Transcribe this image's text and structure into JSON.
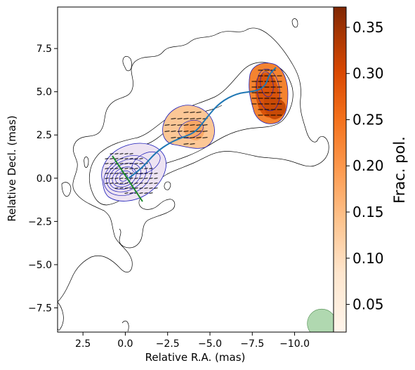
{
  "chart_data": {
    "type": "contour",
    "xlabel": "Relative R.A. (mas)",
    "ylabel": "Relative Decl. (mas)",
    "xlim": [
      4.0,
      -12.3
    ],
    "ylim": [
      -8.9,
      9.9
    ],
    "xticks": [
      2.5,
      0.0,
      -2.5,
      -5.0,
      -7.5,
      -10.0
    ],
    "xtick_labels": [
      "2.5",
      "0.0",
      "−2.5",
      "−5.0",
      "−7.5",
      "−10.0"
    ],
    "yticks": [
      7.5,
      5.0,
      2.5,
      0.0,
      -2.5,
      -5.0,
      -7.5
    ],
    "ytick_labels": [
      "7.5",
      "5.0",
      "2.5",
      "0.0",
      "−2.5",
      "−5.0",
      "−7.5"
    ],
    "colorbar": {
      "label": "Frac. pol.",
      "range": [
        0.02,
        0.372
      ],
      "ticks": [
        0.05,
        0.1,
        0.15,
        0.2,
        0.25,
        0.3,
        0.35
      ],
      "tick_labels": [
        "0.05",
        "0.10",
        "0.15",
        "0.20",
        "0.25",
        "0.30",
        "0.35"
      ],
      "colormap": [
        "#fff5eb",
        "#fdd9b4",
        "#fda762",
        "#f3701b",
        "#d94801",
        "#a63603",
        "#7f2704"
      ]
    },
    "polarized_regions": [
      {
        "center": [
          -3.6,
          2.8
        ],
        "frac_pol": 0.12
      },
      {
        "center": [
          -8.3,
          5.2
        ],
        "frac_pol": 0.24
      },
      {
        "center": [
          -8.4,
          4.2
        ],
        "frac_pol": 0.3
      },
      {
        "center": [
          0.1,
          0.3
        ],
        "frac_pol": 0.05
      }
    ],
    "jet_ridge_line": [
      [
        -0.2,
        0.0
      ],
      [
        -1.0,
        0.6
      ],
      [
        -1.8,
        1.5
      ],
      [
        -2.7,
        2.1
      ],
      [
        -3.5,
        2.4
      ],
      [
        -4.2,
        2.7
      ],
      [
        -4.8,
        3.5
      ],
      [
        -5.6,
        4.4
      ],
      [
        -6.6,
        4.9
      ],
      [
        -7.4,
        5.0
      ],
      [
        -7.9,
        5.1
      ],
      [
        -8.3,
        5.4
      ],
      [
        -8.5,
        6.0
      ],
      [
        -8.9,
        6.4
      ]
    ],
    "core_axis_line": [
      [
        0.7,
        1.3
      ],
      [
        -1.0,
        -1.3
      ]
    ],
    "beam": {
      "center": [
        -11.6,
        -8.4
      ],
      "major": 0.85,
      "minor": 0.85,
      "color": "#8fc88f"
    },
    "contour_colors": {
      "total_intensity": "#000000",
      "polarized_intensity": "#1a1ab8",
      "ridge": "#1f77b4",
      "core_axis": "#1a8a2a"
    }
  }
}
